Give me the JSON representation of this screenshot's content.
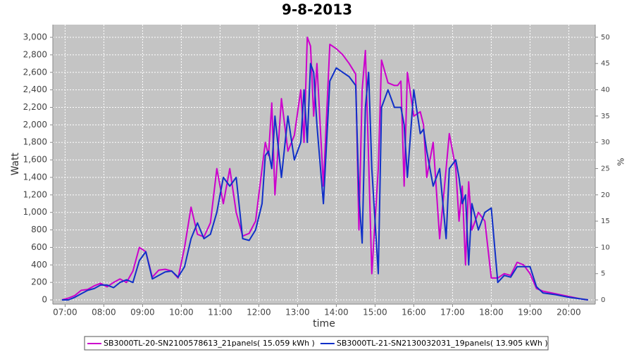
{
  "chart_data": {
    "type": "line",
    "title": "9-8-2013",
    "x_label": "time",
    "y_label": "Watt",
    "y2_label": "%",
    "x": [
      "06:55",
      "07:05",
      "07:15",
      "07:25",
      "07:35",
      "07:45",
      "07:55",
      "08:05",
      "08:15",
      "08:25",
      "08:35",
      "08:45",
      "08:55",
      "09:05",
      "09:15",
      "09:25",
      "09:35",
      "09:45",
      "09:55",
      "10:05",
      "10:15",
      "10:25",
      "10:35",
      "10:45",
      "10:55",
      "11:05",
      "11:15",
      "11:25",
      "11:35",
      "11:45",
      "11:55",
      "12:05",
      "12:10",
      "12:15",
      "12:20",
      "12:25",
      "12:35",
      "12:45",
      "12:55",
      "13:05",
      "13:10",
      "13:15",
      "13:20",
      "13:25",
      "13:30",
      "13:40",
      "13:50",
      "14:00",
      "14:10",
      "14:20",
      "14:30",
      "14:35",
      "14:40",
      "14:45",
      "14:50",
      "14:55",
      "15:05",
      "15:10",
      "15:20",
      "15:30",
      "15:35",
      "15:40",
      "15:45",
      "15:50",
      "16:00",
      "16:10",
      "16:15",
      "16:20",
      "16:30",
      "16:40",
      "16:50",
      "16:55",
      "17:05",
      "17:10",
      "17:15",
      "17:20",
      "17:25",
      "17:30",
      "17:40",
      "17:50",
      "18:00",
      "18:10",
      "18:20",
      "18:30",
      "18:40",
      "18:50",
      "19:00",
      "19:10",
      "19:20",
      "19:40",
      "20:00",
      "20:20",
      "20:30"
    ],
    "series": [
      {
        "name": "SB3000TL-20-SN2100578613_21panels( 15.059 kWh )",
        "color": "#cc00cc",
        "values": [
          0,
          20,
          50,
          110,
          120,
          160,
          190,
          150,
          200,
          240,
          200,
          330,
          600,
          550,
          260,
          340,
          350,
          330,
          250,
          600,
          1060,
          750,
          720,
          880,
          1500,
          1100,
          1500,
          1000,
          730,
          760,
          900,
          1500,
          1800,
          1650,
          2250,
          1200,
          2300,
          1700,
          1880,
          2400,
          1800,
          3000,
          2900,
          2100,
          2700,
          1300,
          2920,
          2870,
          2800,
          2700,
          2580,
          800,
          2400,
          2850,
          1600,
          300,
          1500,
          2740,
          2480,
          2450,
          2450,
          2500,
          1300,
          2600,
          2100,
          2150,
          2000,
          1400,
          1800,
          700,
          1500,
          1900,
          1500,
          900,
          1300,
          400,
          1350,
          800,
          1000,
          900,
          250,
          250,
          300,
          280,
          430,
          400,
          300,
          130,
          100,
          70,
          40,
          10,
          0
        ]
      },
      {
        "name": "SB3000TL-21-SN2130032031_19panels( 13.905 kWh )",
        "color": "#1030c8",
        "values": [
          0,
          0,
          30,
          70,
          110,
          130,
          170,
          170,
          140,
          200,
          230,
          200,
          450,
          550,
          240,
          280,
          320,
          330,
          260,
          380,
          700,
          880,
          700,
          750,
          1000,
          1400,
          1300,
          1400,
          700,
          680,
          800,
          1100,
          1650,
          1700,
          1500,
          2100,
          1400,
          2100,
          1600,
          1800,
          2400,
          1800,
          2700,
          2600,
          2000,
          1100,
          2500,
          2650,
          2600,
          2550,
          2450,
          1200,
          650,
          2200,
          2600,
          1500,
          300,
          2200,
          2400,
          2200,
          2200,
          2200,
          2000,
          1400,
          2400,
          1900,
          1950,
          1700,
          1300,
          1500,
          700,
          1500,
          1600,
          1400,
          1100,
          1200,
          400,
          1100,
          800,
          1000,
          1050,
          200,
          280,
          260,
          380,
          380,
          380,
          150,
          80,
          60,
          30,
          10,
          0
        ]
      }
    ],
    "xlim": [
      "06:41",
      "20:41"
    ],
    "xticks": [
      "07:00",
      "08:00",
      "09:00",
      "10:00",
      "11:00",
      "12:00",
      "13:00",
      "14:00",
      "15:00",
      "16:00",
      "17:00",
      "18:00",
      "19:00",
      "20:00"
    ],
    "ylim": [
      -48,
      3145
    ],
    "yticks": [
      0,
      200,
      400,
      600,
      800,
      {
        "value": 1000,
        "label": "1,000"
      },
      {
        "value": 1200,
        "label": "1,200"
      },
      {
        "value": 1400,
        "label": "1,400"
      },
      {
        "value": 1600,
        "label": "1,600"
      },
      {
        "value": 1800,
        "label": "1,800"
      },
      {
        "value": 2000,
        "label": "2,000"
      },
      {
        "value": 2200,
        "label": "2,200"
      },
      {
        "value": 2400,
        "label": "2,400"
      },
      {
        "value": 2600,
        "label": "2,600"
      },
      {
        "value": 2800,
        "label": "2,800"
      },
      {
        "value": 3000,
        "label": "3,000"
      }
    ],
    "y2lim": [
      -0.8,
      52.4
    ],
    "y2ticks": [
      0,
      5,
      10,
      15,
      20,
      25,
      30,
      35,
      40,
      45,
      50
    ],
    "grid": true,
    "legend": "bottom"
  }
}
